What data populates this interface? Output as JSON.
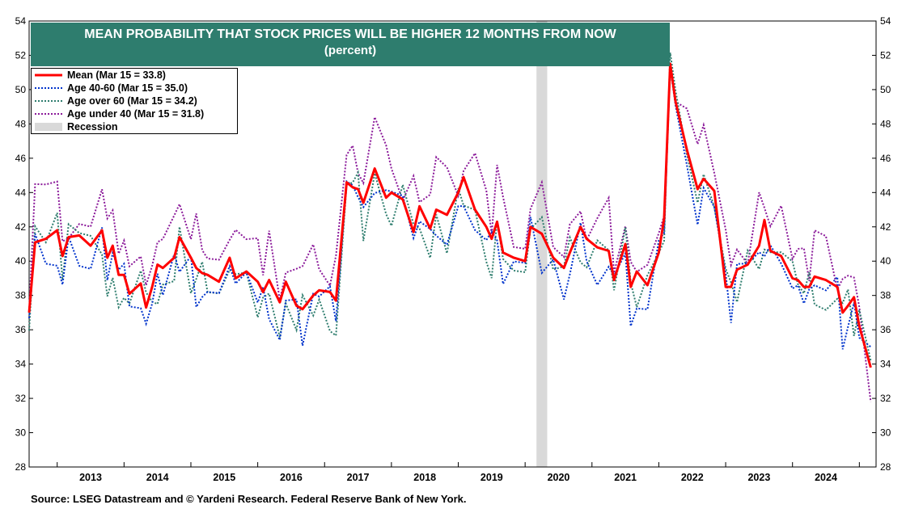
{
  "chart_data": {
    "type": "line",
    "title": "MEAN PROBABILITY THAT STOCK PRICES WILL BE HIGHER 12 MONTHS FROM NOW",
    "subtitle": "(percent)",
    "xlabel": "",
    "ylabel": "",
    "ylim": [
      28,
      54
    ],
    "yticks": [
      "28",
      "30",
      "32",
      "34",
      "36",
      "38",
      "40",
      "42",
      "44",
      "46",
      "48",
      "50",
      "52",
      "54"
    ],
    "xlim": [
      2012.58,
      2025.25
    ],
    "xtick_labels": [
      "2013",
      "2014",
      "2015",
      "2016",
      "2017",
      "2018",
      "2019",
      "2020",
      "2021",
      "2022",
      "2023",
      "2024"
    ],
    "recession": {
      "label": "Recession",
      "start": 2020.17,
      "end": 2020.33,
      "color": "#d9d9d9"
    },
    "legend_position": "top-left",
    "series": [
      {
        "name": "Mean (Mar 15 = 33.8)",
        "color": "#ff0000",
        "style": "solid",
        "x": [
          2012.58,
          2012.67,
          2012.83,
          2013.0,
          2013.08,
          2013.17,
          2013.33,
          2013.5,
          2013.67,
          2013.75,
          2013.83,
          2013.92,
          2014.0,
          2014.08,
          2014.25,
          2014.33,
          2014.42,
          2014.5,
          2014.58,
          2014.75,
          2014.83,
          2015.0,
          2015.08,
          2015.17,
          2015.25,
          2015.42,
          2015.58,
          2015.67,
          2015.83,
          2016.0,
          2016.08,
          2016.17,
          2016.33,
          2016.42,
          2016.58,
          2016.67,
          2016.83,
          2016.92,
          2017.08,
          2017.17,
          2017.33,
          2017.42,
          2017.5,
          2017.58,
          2017.75,
          2017.92,
          2018.0,
          2018.17,
          2018.33,
          2018.42,
          2018.58,
          2018.67,
          2018.83,
          2019.0,
          2019.08,
          2019.25,
          2019.42,
          2019.5,
          2019.58,
          2019.67,
          2019.83,
          2020.0,
          2020.08,
          2020.25,
          2020.42,
          2020.58,
          2020.67,
          2020.83,
          2020.92,
          2021.08,
          2021.25,
          2021.33,
          2021.5,
          2021.58,
          2021.67,
          2021.83,
          2022.0,
          2022.08,
          2022.17,
          2022.25,
          2022.42,
          2022.58,
          2022.67,
          2022.83,
          2023.0,
          2023.08,
          2023.17,
          2023.33,
          2023.5,
          2023.58,
          2023.67,
          2023.83,
          2024.0,
          2024.08,
          2024.17,
          2024.25,
          2024.33,
          2024.5,
          2024.67,
          2024.75,
          2024.83,
          2024.92,
          2025.0,
          2025.17
        ],
        "values": [
          37.0,
          41.1,
          41.3,
          41.8,
          40.3,
          41.4,
          41.5,
          40.9,
          41.8,
          40.2,
          40.9,
          39.2,
          39.2,
          38.1,
          38.7,
          37.3,
          38.5,
          39.8,
          39.6,
          40.2,
          41.4,
          40.2,
          39.6,
          39.3,
          39.2,
          38.8,
          40.2,
          39.0,
          39.4,
          38.8,
          38.2,
          38.9,
          37.6,
          38.8,
          37.4,
          37.2,
          38.0,
          38.3,
          38.2,
          37.7,
          44.6,
          44.3,
          44.2,
          43.4,
          45.4,
          43.7,
          44.0,
          43.6,
          41.7,
          43.2,
          41.9,
          43.0,
          42.7,
          44.0,
          44.9,
          43.0,
          42.0,
          41.3,
          42.3,
          40.5,
          40.2,
          40.0,
          42.0,
          41.6,
          40.2,
          39.6,
          40.5,
          42.0,
          41.3,
          40.8,
          40.6,
          38.9,
          41.0,
          38.5,
          39.4,
          38.6,
          40.5,
          42.5,
          51.5,
          49.3,
          46.5,
          44.2,
          44.8,
          44.1,
          38.5,
          38.5,
          39.5,
          39.8,
          40.9,
          42.4,
          40.6,
          40.3,
          39.0,
          38.9,
          38.5,
          38.5,
          39.1,
          38.9,
          38.5,
          37.0,
          37.4,
          37.9,
          36.2,
          33.8
        ],
        "note": "approximate monthly trace; last value 33.8"
      },
      {
        "name": "Age 40-60  (Mar 15 = 35.0)",
        "color": "#0033cc",
        "style": "dotted"
      },
      {
        "name": "Age over 60 (Mar 15 = 34.2)",
        "color": "#2e7d6e",
        "style": "dotted"
      },
      {
        "name": "Age under 40 (Mar 15 = 31.8)",
        "color": "#8b1a9a",
        "style": "dotted"
      }
    ]
  },
  "legend": {
    "mean": "Mean (Mar 15 = 33.8)",
    "age_40_60": "Age 40-60  (Mar 15 = 35.0)",
    "age_over_60": "Age over 60 (Mar 15 = 34.2)",
    "age_under_40": "Age under 40 (Mar 15 = 31.8)",
    "recession": "Recession"
  },
  "title": {
    "line1": "MEAN PROBABILITY THAT STOCK PRICES WILL BE HIGHER 12 MONTHS FROM NOW",
    "line2": "(percent)"
  },
  "source": "Source: LSEG Datastream and © Yardeni Research. Federal Reserve Bank of New York.",
  "colors": {
    "title_bg": "#2e7d6e",
    "mean": "#ff0000",
    "age_40_60": "#0033cc",
    "age_over_60": "#2e7d6e",
    "age_under_40": "#8b1a9a",
    "recession": "#d9d9d9"
  }
}
